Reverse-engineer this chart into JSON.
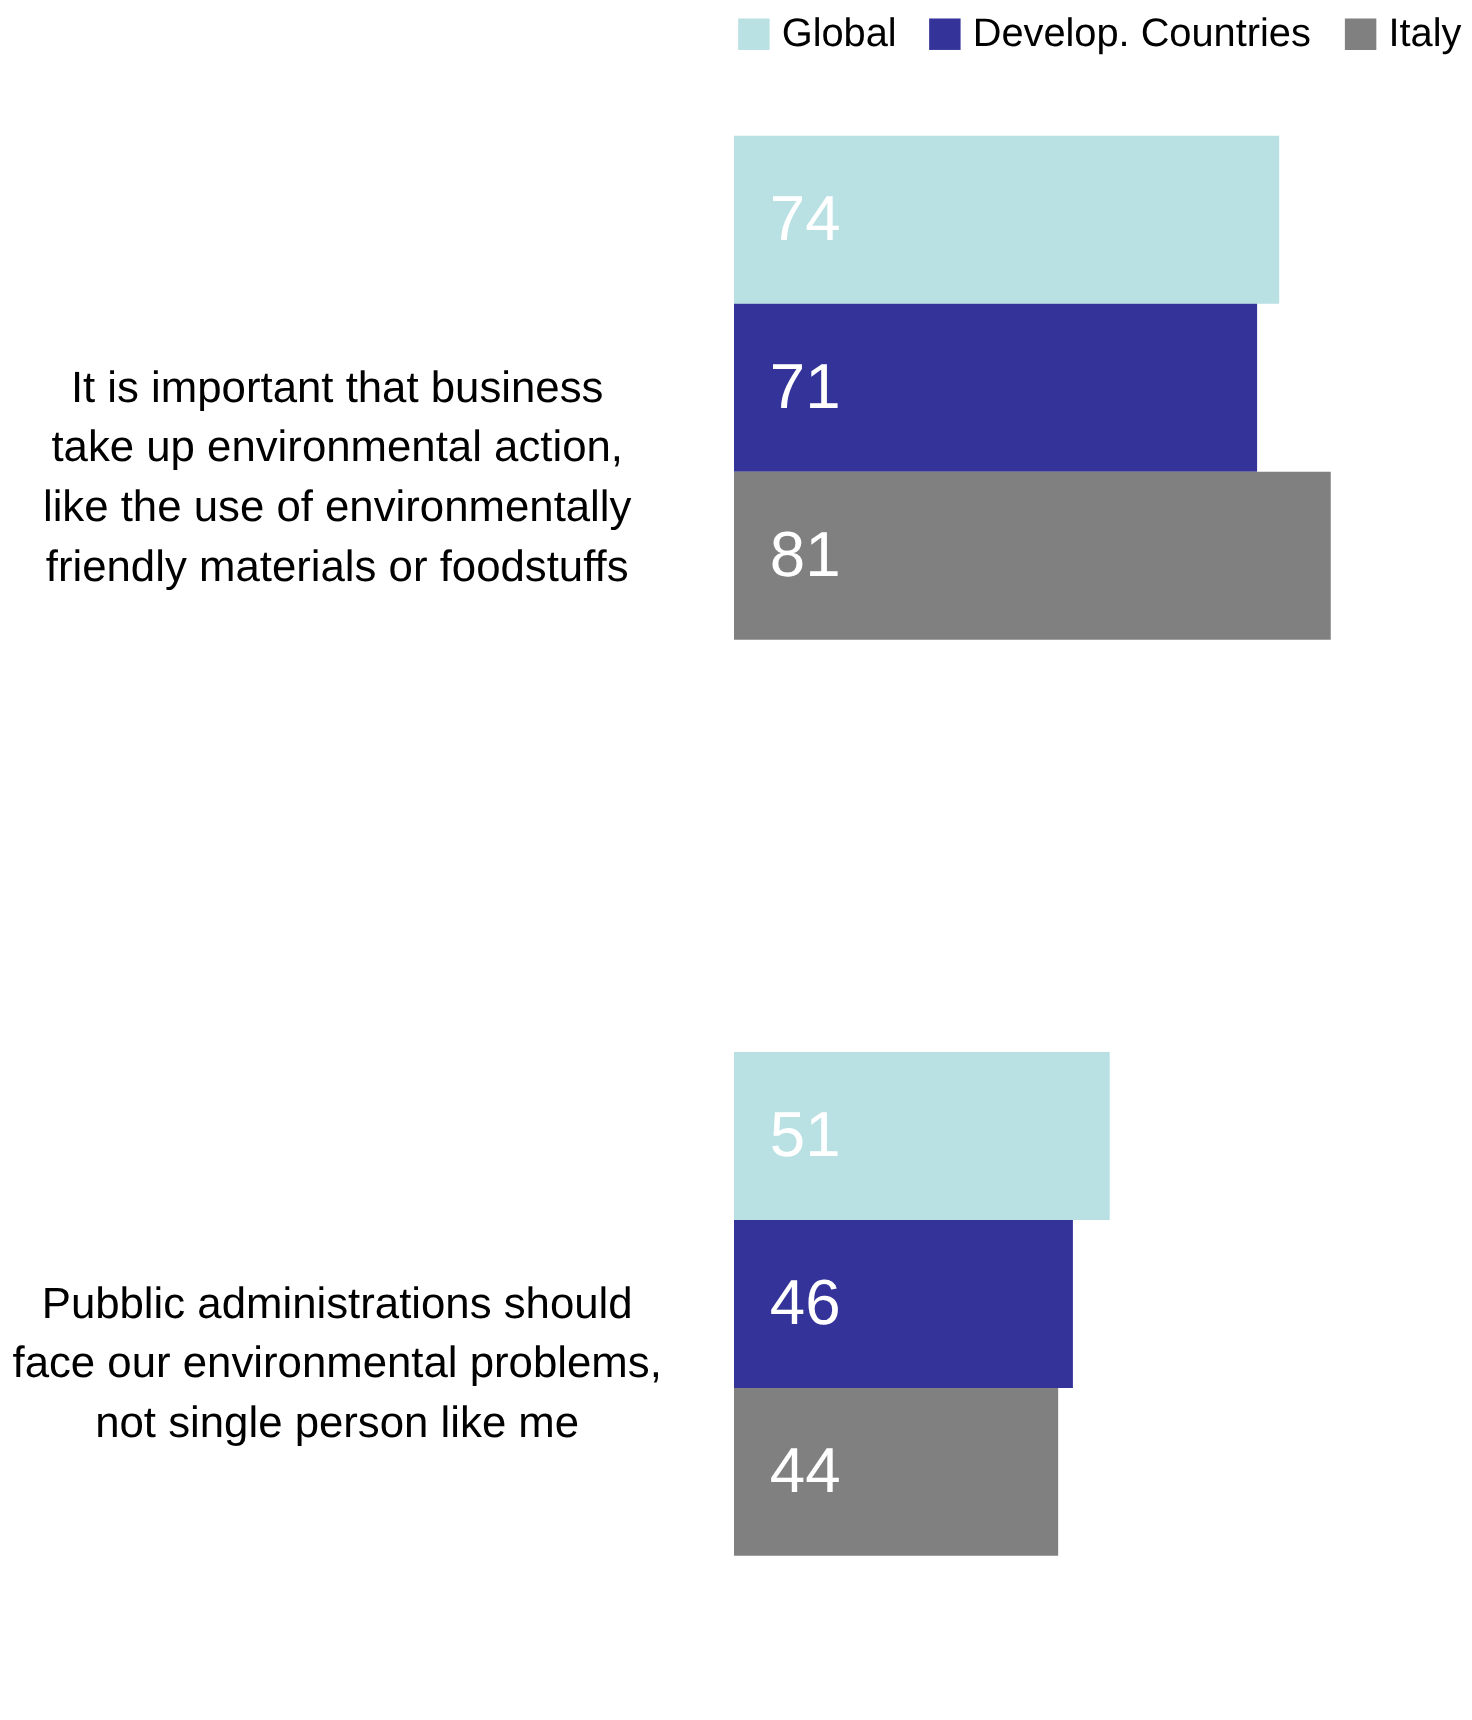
{
  "chart_data": {
    "type": "bar",
    "orientation": "horizontal",
    "categories": [
      "It is important that business take up environmental action, like the use of environmentally friendly materials or foodstuffs",
      "Pubblic administrations should face our environmental problems, not single person like me"
    ],
    "series": [
      {
        "name": "Global",
        "color": "#b9e0e3",
        "values": [
          74,
          51
        ]
      },
      {
        "name": "Develop. Countries",
        "color": "#333399",
        "values": [
          71,
          46
        ]
      },
      {
        "name": "Italy",
        "color": "#808080",
        "values": [
          81,
          44
        ]
      }
    ],
    "data_labels": true,
    "legend": "top right",
    "grid": false
  }
}
